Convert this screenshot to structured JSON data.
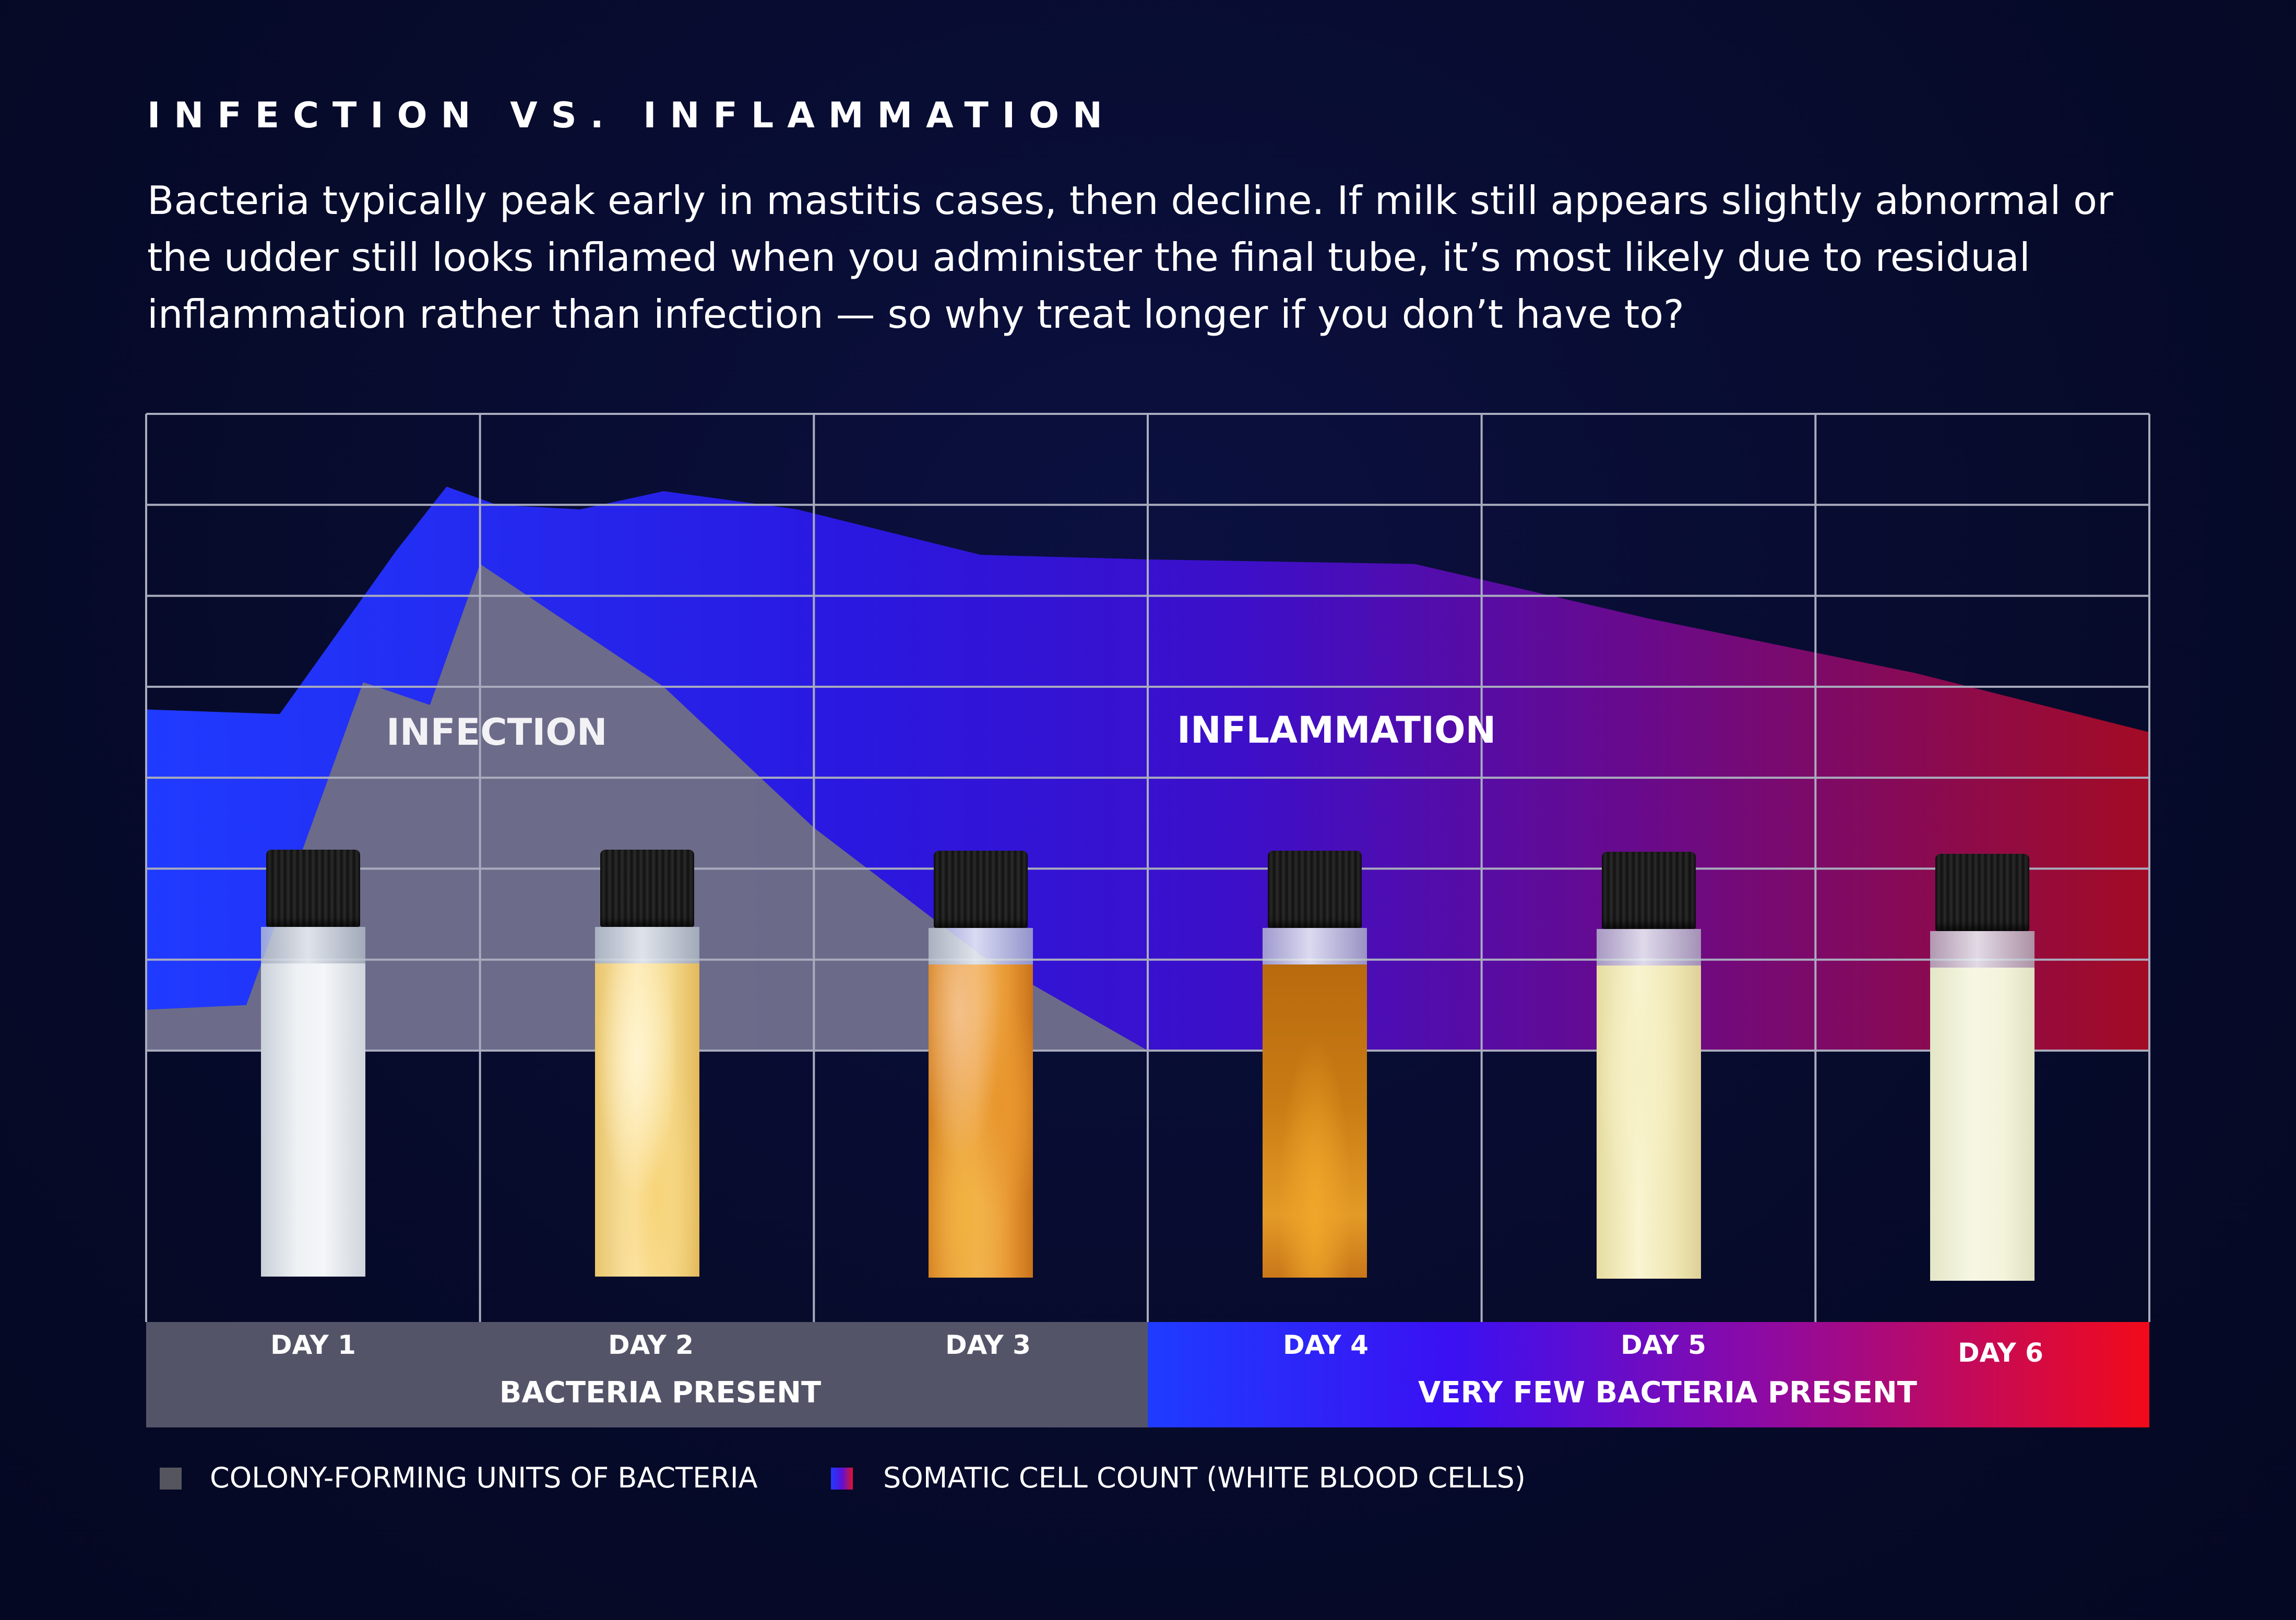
{
  "page": {
    "heading": "INFECTION VS. INFLAMMATION",
    "intro": "Bacteria typically peak early in mastitis cases, then decline. If milk still appears slightly abnormal or the udder still looks inflamed when you administer the final tube, it’s most likely due to residual inflammation rather than infection — so why treat longer if you don’t have to?"
  },
  "chart_data": {
    "type": "area",
    "categories": [
      "DAY 1",
      "DAY 2",
      "DAY 3",
      "DAY 4",
      "DAY 5",
      "DAY 6"
    ],
    "series": [
      {
        "name": "COLONY-FORMING UNITS OF BACTERIA",
        "color": "#6e6d86",
        "x": [
          0,
          0.3,
          0.65,
          0.85,
          1.0,
          1.55,
          2.0,
          2.5,
          3.0
        ],
        "y": [
          0.45,
          0.5,
          4.05,
          3.8,
          5.35,
          4.0,
          2.45,
          1.05,
          0
        ]
      },
      {
        "name": "SOMATIC CELL COUNT (WHITE BLOOD CELLS)",
        "color_start": "#1f3bff",
        "color_end": "#a30b24",
        "x": [
          0,
          0.4,
          0.75,
          0.9,
          1.05,
          1.3,
          1.55,
          1.95,
          2.5,
          3.0,
          3.8,
          4.5,
          5.3,
          6.0
        ],
        "y": [
          3.75,
          3.7,
          5.5,
          6.2,
          6.0,
          5.95,
          6.15,
          5.95,
          5.45,
          5.4,
          5.35,
          4.75,
          4.15,
          3.5
        ]
      }
    ],
    "area_labels": {
      "infection": "INFECTION",
      "inflammation": "INFLAMMATION"
    },
    "band_labels": {
      "left": "BACTERIA PRESENT",
      "right": "VERY FEW BACTERIA PRESENT"
    },
    "ylim": [
      0,
      7
    ],
    "grid": true,
    "legend_position": "bottom-left",
    "band_colors": {
      "left": "#545469",
      "right_start": "#1f3bff",
      "right_mid": "#4a12e6",
      "right_end": "#f20a1a"
    }
  },
  "samples": [
    {
      "day": "DAY 1",
      "look": "white"
    },
    {
      "day": "DAY 2",
      "look": "pale-yellow"
    },
    {
      "day": "DAY 3",
      "look": "orange-clots"
    },
    {
      "day": "DAY 4",
      "look": "dark-amber"
    },
    {
      "day": "DAY 5",
      "look": "cream"
    },
    {
      "day": "DAY 6",
      "look": "off-white"
    }
  ],
  "legend": {
    "bacteria": "COLONY-FORMING UNITS OF BACTERIA",
    "scc": "SOMATIC CELL COUNT (WHITE BLOOD CELLS)"
  }
}
